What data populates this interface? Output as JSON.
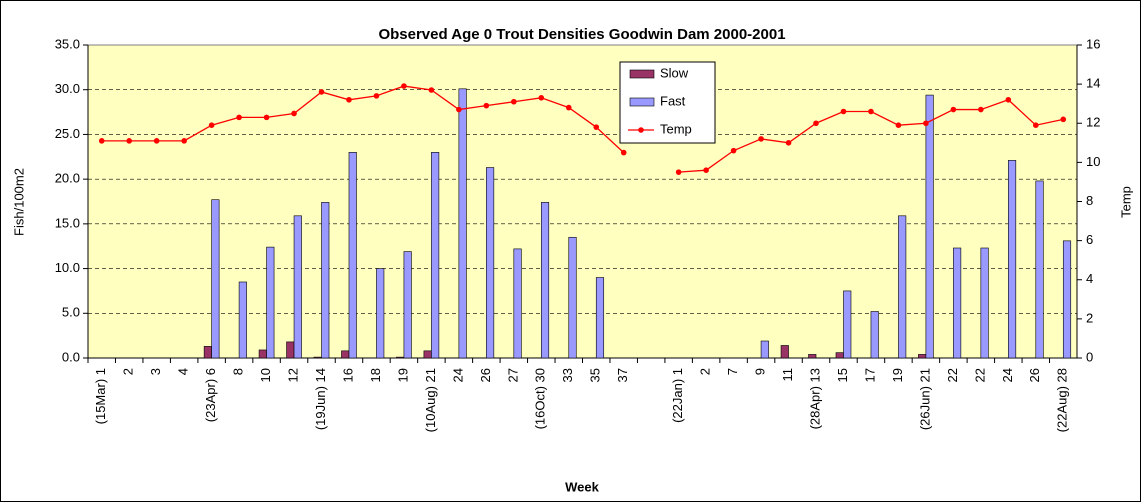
{
  "chart_data": {
    "type": "bar",
    "title": "Observed Age 0 Trout Densities Goodwin Dam 2000-2001",
    "x_label": "Week",
    "y_label": "Fish/100m2",
    "y2_label": "Temp",
    "categories": [
      "(15Mar) 1",
      "2",
      "3",
      "4",
      "(23Apr) 6",
      "8",
      "10",
      "12",
      "(19Jun) 14",
      "16",
      "18",
      "19",
      "(10Aug) 21",
      "24",
      "26",
      "27",
      "(16Oct) 30",
      "33",
      "35",
      "37",
      null,
      "(22Jan) 1",
      "2",
      "7",
      "9",
      "11",
      "(28Apr) 13",
      "15",
      "17",
      "19",
      "(26Jun) 21",
      "22",
      "22",
      "24",
      "26",
      "(22Aug) 28"
    ],
    "series": [
      {
        "name": "Slow",
        "color": "#993366",
        "type": "bar",
        "values": [
          0,
          0,
          0,
          0,
          1.3,
          0,
          0.9,
          1.8,
          0.1,
          0.8,
          0,
          0.1,
          0.8,
          0,
          0,
          0,
          0,
          0,
          0,
          0,
          null,
          0,
          0,
          0,
          0,
          1.4,
          0.4,
          0.6,
          0,
          0,
          0.4,
          0,
          0,
          0,
          0,
          0
        ]
      },
      {
        "name": "Fast",
        "color": "#9999ff",
        "type": "bar",
        "values": [
          0,
          0,
          0,
          0,
          17.7,
          8.5,
          12.4,
          15.9,
          17.4,
          23.0,
          10.0,
          11.9,
          23.0,
          30.1,
          21.3,
          12.2,
          17.4,
          13.5,
          9.0,
          0,
          null,
          0,
          0,
          0,
          1.9,
          0,
          0,
          7.5,
          5.2,
          15.9,
          29.4,
          12.3,
          12.3,
          22.1,
          19.8,
          13.1
        ]
      },
      {
        "name": "Temp",
        "color": "#ff0000",
        "type": "line",
        "axis": "y2",
        "values": [
          11.1,
          11.1,
          11.1,
          11.1,
          11.9,
          12.3,
          12.3,
          12.5,
          13.6,
          13.2,
          13.4,
          13.9,
          13.7,
          12.7,
          12.9,
          13.1,
          13.3,
          12.8,
          11.8,
          10.5,
          null,
          9.5,
          9.6,
          10.6,
          11.2,
          11.0,
          12.0,
          12.6,
          12.6,
          11.9,
          12.0,
          12.7,
          12.7,
          13.2,
          11.9,
          12.2
        ]
      }
    ],
    "ylim": [
      0,
      35
    ],
    "yticks": [
      {
        "value": 0,
        "label": "0.0"
      },
      {
        "value": 5,
        "label": "5.0"
      },
      {
        "value": 10,
        "label": "10.0"
      },
      {
        "value": 15,
        "label": "15.0"
      },
      {
        "value": 20,
        "label": "20.0"
      },
      {
        "value": 25,
        "label": "25.0"
      },
      {
        "value": 30,
        "label": "30.0"
      },
      {
        "value": 35,
        "label": "35.0"
      }
    ],
    "y2lim": [
      0,
      16
    ],
    "y2ticks": [
      0,
      2,
      4,
      6,
      8,
      10,
      12,
      14,
      16
    ],
    "grid": true,
    "legend": "top"
  }
}
